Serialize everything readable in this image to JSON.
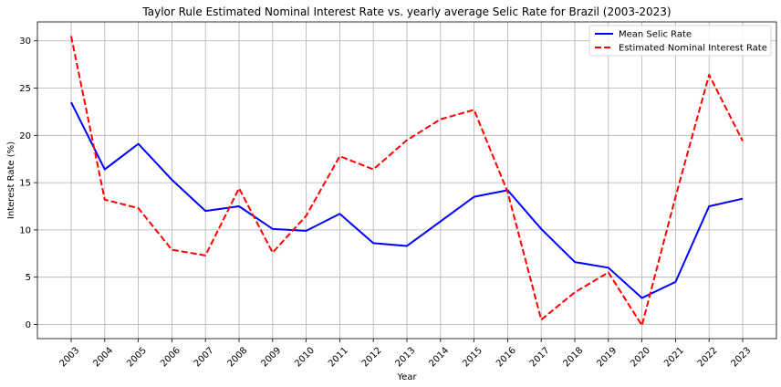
{
  "chart_data": {
    "type": "line",
    "title": "Taylor Rule Estimated Nominal Interest Rate vs. yearly average Selic Rate for Brazil (2003-2023)",
    "xlabel": "Year",
    "ylabel": "Interest Rate (%)",
    "categories": [
      "2003",
      "2004",
      "2005",
      "2006",
      "2007",
      "2008",
      "2009",
      "2010",
      "2011",
      "2012",
      "2013",
      "2014",
      "2015",
      "2016",
      "2017",
      "2018",
      "2019",
      "2020",
      "2021",
      "2022",
      "2023"
    ],
    "ylim": [
      -1.5,
      32
    ],
    "yticks": [
      0,
      5,
      10,
      15,
      20,
      25,
      30
    ],
    "grid": true,
    "legend_position": "top-right",
    "series": [
      {
        "name": "Mean Selic Rate",
        "color": "#0000ff",
        "style": "solid",
        "values": [
          23.5,
          16.4,
          19.1,
          15.3,
          12.0,
          12.5,
          10.1,
          9.9,
          11.7,
          8.6,
          8.3,
          10.9,
          13.5,
          14.2,
          10.1,
          6.6,
          6.0,
          2.8,
          4.5,
          12.5,
          13.3
        ]
      },
      {
        "name": "Estimated Nominal Interest Rate",
        "color": "#ff0000",
        "style": "dashed",
        "values": [
          30.5,
          13.2,
          12.3,
          7.9,
          7.3,
          14.4,
          7.6,
          11.5,
          17.8,
          16.4,
          19.5,
          21.7,
          22.7,
          14.0,
          0.5,
          3.4,
          5.5,
          -0.1,
          13.5,
          26.4,
          19.4
        ]
      }
    ]
  }
}
